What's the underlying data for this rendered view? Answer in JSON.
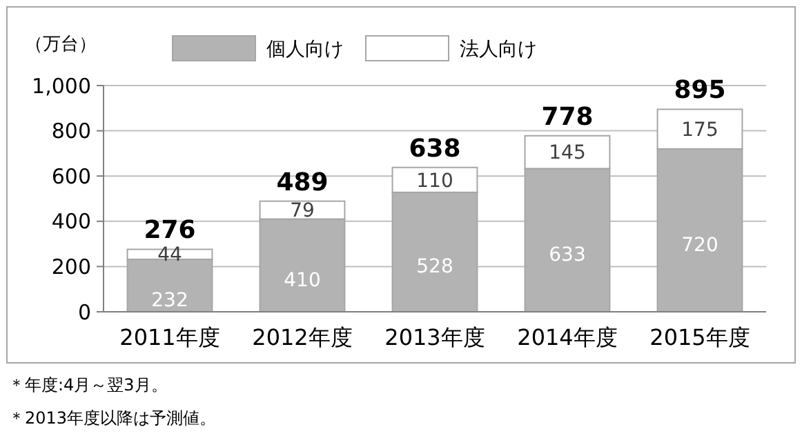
{
  "chart_data": {
    "type": "bar",
    "stacked": true,
    "ylabel": "（万台）",
    "categories": [
      "2011年度",
      "2012年度",
      "2013年度",
      "2014年度",
      "2015年度"
    ],
    "series": [
      {
        "name": "個人向け",
        "color": "#b3b3b3",
        "values": [
          232,
          410,
          528,
          633,
          720
        ]
      },
      {
        "name": "法人向け",
        "color": "#ffffff",
        "values": [
          44,
          79,
          110,
          145,
          175
        ]
      }
    ],
    "totals": [
      "276",
      "489",
      "638",
      "778",
      "895"
    ],
    "data_labels": true,
    "ylim": [
      0,
      1000
    ],
    "yticks": [
      0,
      200,
      400,
      600,
      800,
      {
        "value": 1000,
        "label": "1,000"
      }
    ],
    "grid": "y",
    "legend": "top",
    "annotations": [
      "＊年度:4月～翌3月。",
      "＊2013年度以降は予測値。"
    ]
  }
}
